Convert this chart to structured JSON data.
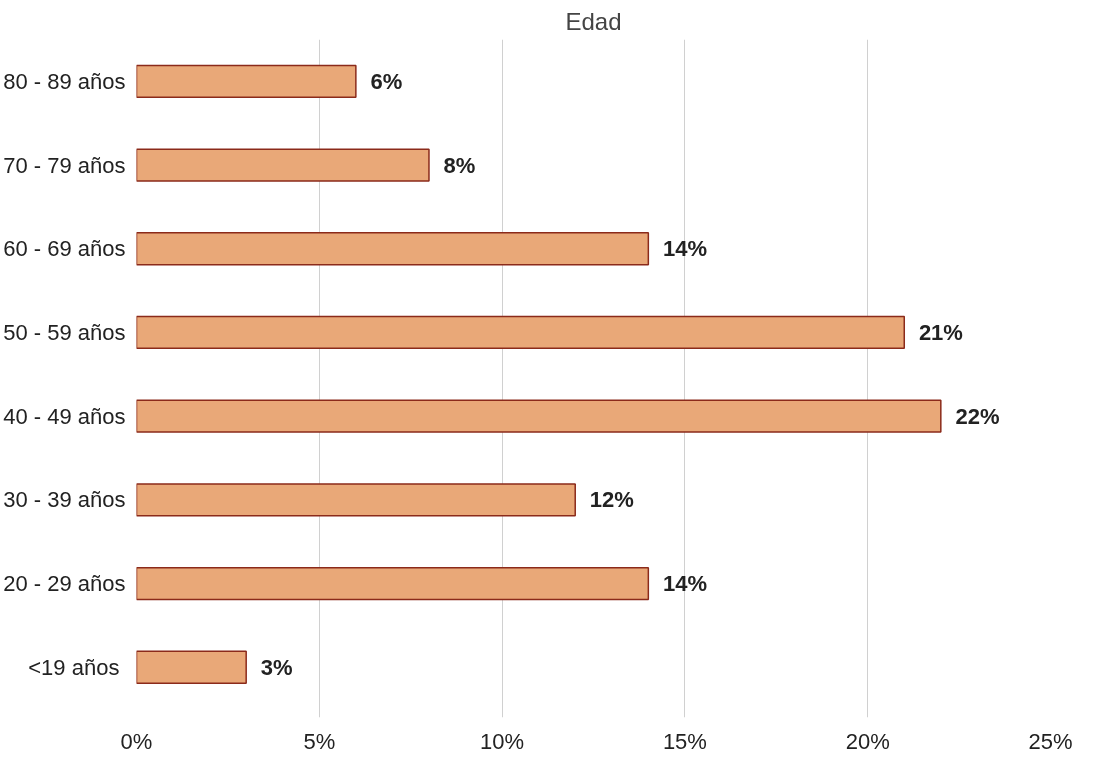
{
  "chart_data": {
    "type": "bar",
    "orientation": "horizontal",
    "title": "Edad",
    "categories": [
      "80 - 89 años",
      "70 - 79 años",
      "60 - 69 años",
      "50 - 59 años",
      "40 - 49 años",
      "30 - 39 años",
      "20 - 29 años",
      "<19  años"
    ],
    "values": [
      6,
      8,
      14,
      21,
      22,
      12,
      14,
      3
    ],
    "value_labels": [
      "6%",
      "8%",
      "14%",
      "21%",
      "22%",
      "12%",
      "14%",
      "3%"
    ],
    "color": "#e9a878",
    "xlim": [
      0,
      25
    ],
    "xticks": [
      {
        "value": 0,
        "label": "0%"
      },
      {
        "value": 5,
        "label": "5%"
      },
      {
        "value": 10,
        "label": "10%"
      },
      {
        "value": 15,
        "label": "15%"
      },
      {
        "value": 20,
        "label": "20%"
      },
      {
        "value": 25,
        "label": "25%"
      }
    ],
    "grid": "x"
  }
}
